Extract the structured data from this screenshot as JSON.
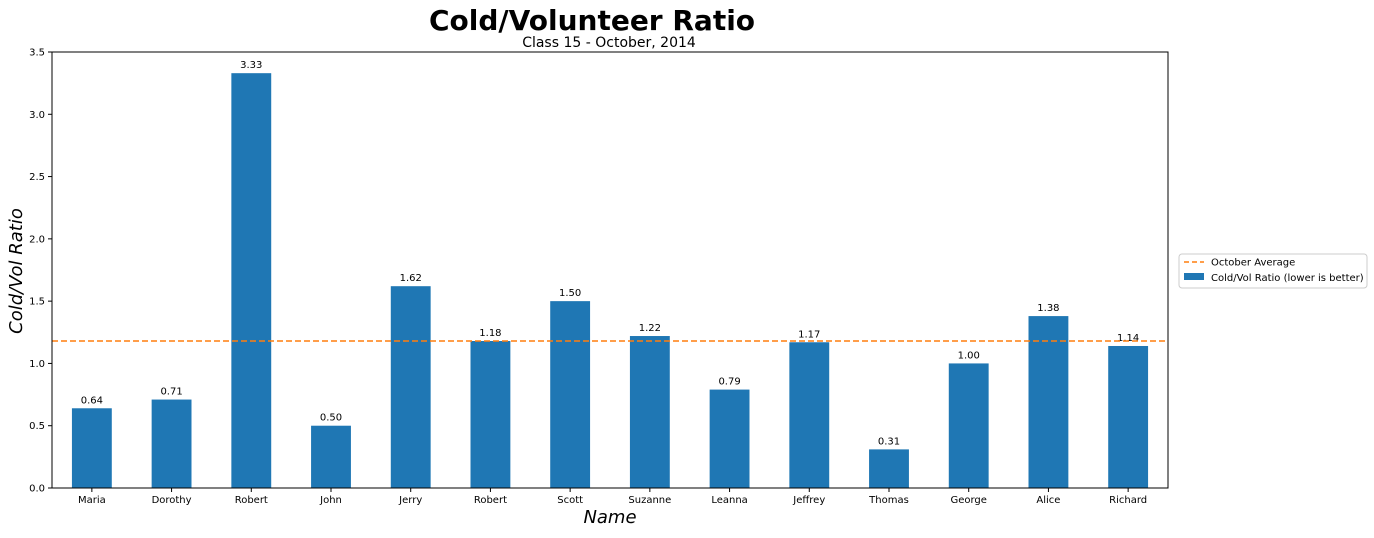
{
  "chart_data": {
    "type": "bar",
    "title": "Cold/Volunteer Ratio",
    "subtitle": "Class 15 - October, 2014",
    "xlabel": "Name",
    "ylabel": "Cold/Vol Ratio",
    "categories": [
      "Maria",
      "Dorothy",
      "Robert",
      "John",
      "Jerry",
      "Robert",
      "Scott",
      "Suzanne",
      "Leanna",
      "Jeffrey",
      "Thomas",
      "George",
      "Alice",
      "Richard"
    ],
    "series": [
      {
        "name": "Cold/Vol Ratio (lower is better)",
        "values": [
          0.64,
          0.71,
          3.33,
          0.5,
          1.62,
          1.18,
          1.5,
          1.22,
          0.79,
          1.17,
          0.31,
          1.0,
          1.38,
          1.14
        ],
        "labels": [
          "0.64",
          "0.71",
          "3.33",
          "0.50",
          "1.62",
          "1.18",
          "1.50",
          "1.22",
          "0.79",
          "1.17",
          "0.31",
          "1.00",
          "1.38",
          "1.14"
        ],
        "color": "#1f77b4"
      }
    ],
    "reference_line": {
      "name": "October Average",
      "value": 1.18,
      "color": "#ff7f0e",
      "style": "dashed"
    },
    "ylim": [
      0,
      3.5
    ],
    "yticks": [
      "0.0",
      "0.5",
      "1.0",
      "1.5",
      "2.0",
      "2.5",
      "3.0",
      "3.5"
    ],
    "grid": false,
    "legend_position": "center-right outside"
  }
}
